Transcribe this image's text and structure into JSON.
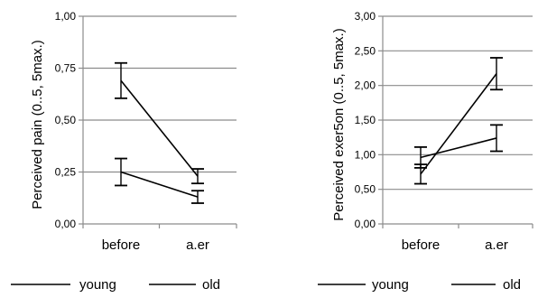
{
  "chart_data": [
    {
      "type": "line",
      "ylabel": "Perceived pain (0..5, 5max.)",
      "xlabel": "",
      "categories": [
        "before",
        "a.er"
      ],
      "ylim": [
        0,
        1
      ],
      "yticks": [
        "0,00",
        "0,25",
        "0,50",
        "0,75",
        "1,00"
      ],
      "grid": true,
      "legend": "bottom",
      "series": [
        {
          "name": "young",
          "values": [
            0.25,
            0.13
          ],
          "err": [
            0.065,
            0.03
          ],
          "color": "#000000"
        },
        {
          "name": "old",
          "values": [
            0.69,
            0.23
          ],
          "err": [
            0.085,
            0.035
          ],
          "color": "#000000"
        }
      ]
    },
    {
      "type": "line",
      "ylabel": "Perceived exer5on (0..5, 5max.)",
      "xlabel": "",
      "categories": [
        "before",
        "a.er"
      ],
      "ylim": [
        0,
        3
      ],
      "yticks": [
        "0,00",
        "0,50",
        "1,00",
        "1,50",
        "2,00",
        "2,50",
        "3,00"
      ],
      "grid": true,
      "legend": "bottom",
      "series": [
        {
          "name": "young",
          "values": [
            0.96,
            1.24
          ],
          "err": [
            0.15,
            0.19
          ],
          "color": "#000000"
        },
        {
          "name": "old",
          "values": [
            0.72,
            2.17
          ],
          "err": [
            0.14,
            0.23
          ],
          "color": "#000000"
        }
      ]
    }
  ]
}
